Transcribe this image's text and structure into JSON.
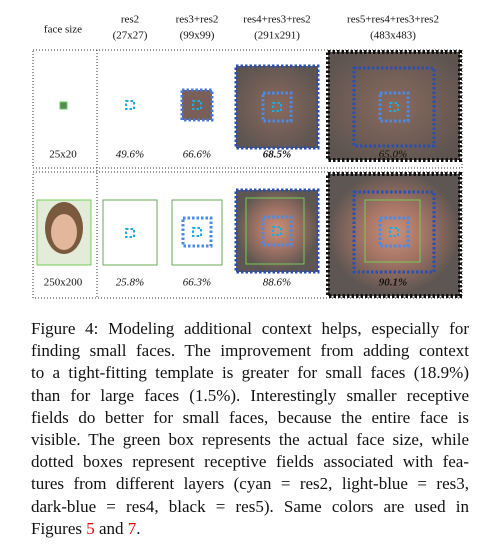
{
  "figure": {
    "headers": [
      "face size",
      "res2",
      "(27x27)",
      "res3+res2",
      "(99x99)",
      "res4+res3+res2",
      "(291x291)",
      "res5+res4+res3+res2",
      "(483x483)"
    ],
    "rows": [
      {
        "label": "25x20",
        "scores": [
          "49.6%",
          "66.6%",
          "68.5%",
          "65.0%"
        ]
      },
      {
        "label": "250x200",
        "scores": [
          "25.8%",
          "66.3%",
          "88.6%",
          "90.1%"
        ]
      }
    ]
  },
  "caption": {
    "lines": [
      "Figure 4: Modeling additional context helps, especially for",
      "finding small faces. The improvement from adding context",
      "to a tight-fitting template is greater for small faces (18.9%)",
      "than for large faces (1.5%). Interestingly smaller receptive",
      "fields do better for small faces, because the entire face is",
      "visible. The green box represents the actual face size, while",
      "dotted boxes represent receptive fields associated with fea-",
      "tures from different layers (cyan = res2, light-blue = res3,",
      "dark-blue = res4, black = res5). Same colors are used in"
    ],
    "last": {
      "before": "Figures",
      "ref1": "5",
      "mid": "and",
      "ref2": "7",
      "after": "."
    }
  }
}
